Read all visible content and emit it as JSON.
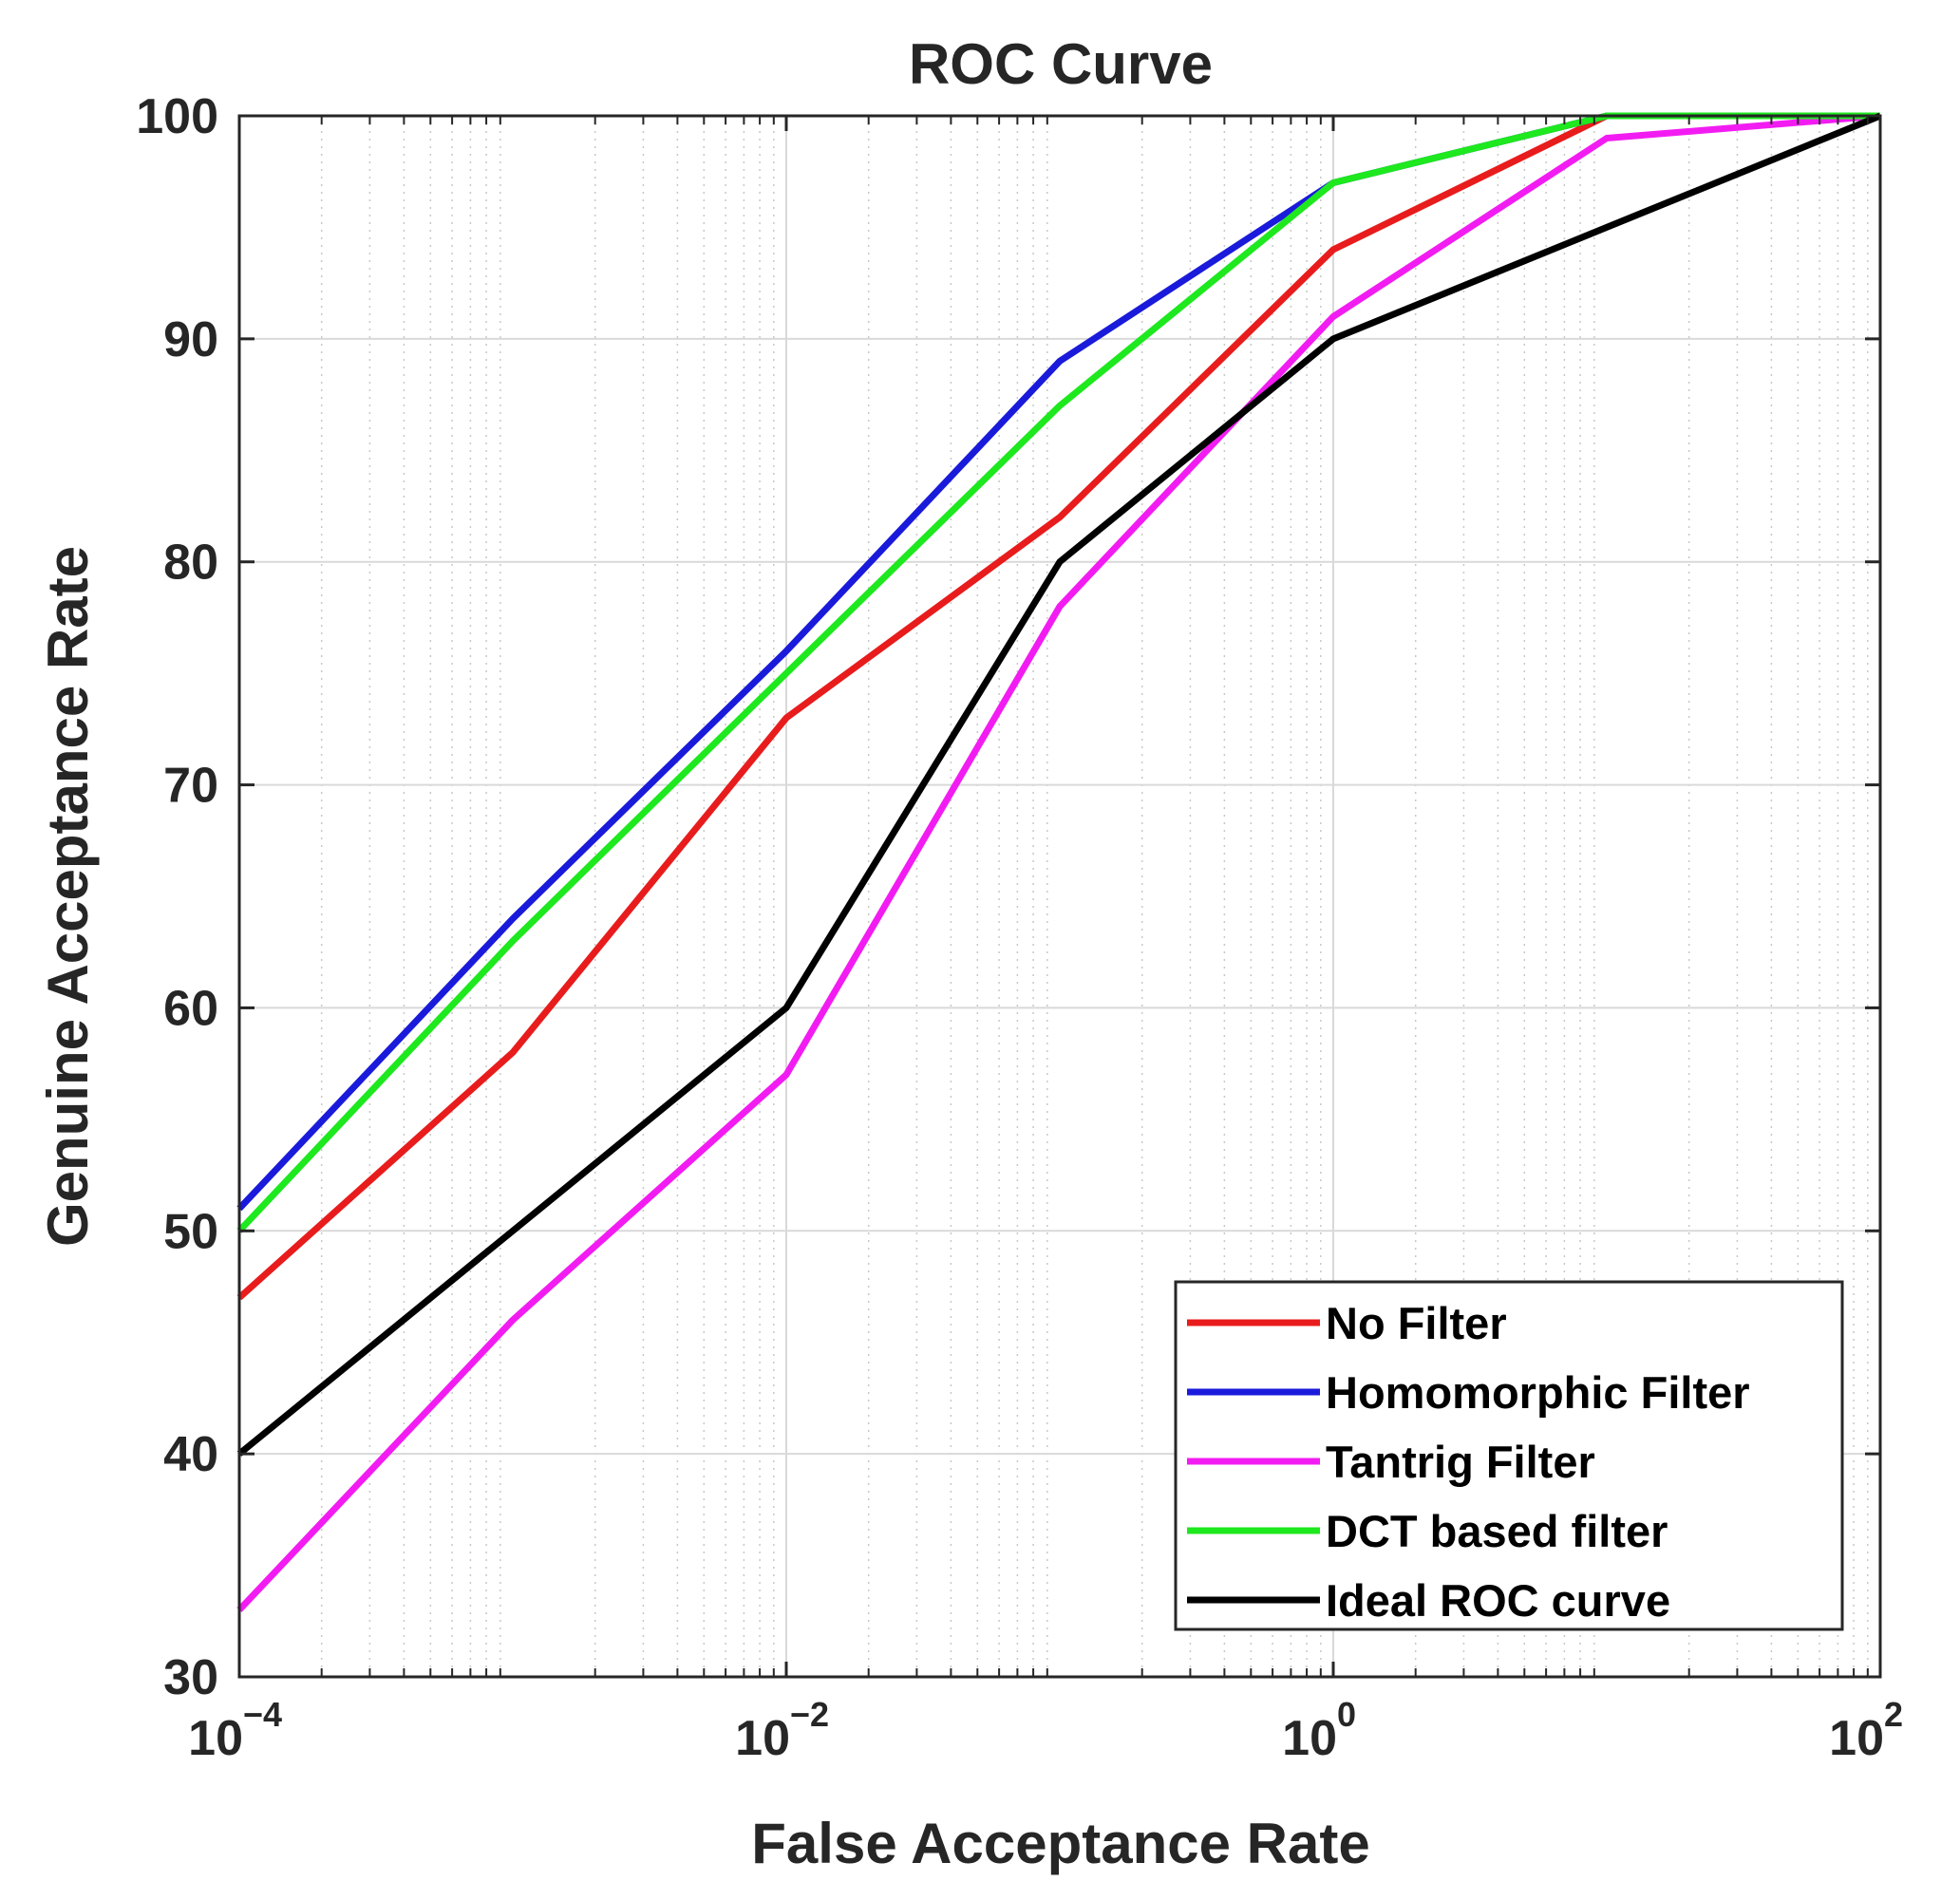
{
  "chart_data": {
    "type": "line",
    "title": "ROC Curve",
    "xlabel": "False Acceptance Rate",
    "ylabel": "Genuine Acceptance Rate",
    "xscale": "log",
    "xlim": [
      0.0001,
      100
    ],
    "ylim": [
      30,
      100
    ],
    "grid": true,
    "minor_grid": true,
    "x_ticks": [
      {
        "value": 0.0001,
        "base": "10",
        "exp": "−4"
      },
      {
        "value": 0.01,
        "base": "10",
        "exp": "−2"
      },
      {
        "value": 1,
        "base": "10",
        "exp": "0"
      },
      {
        "value": 100,
        "base": "10",
        "exp": "2"
      }
    ],
    "y_ticks": [
      {
        "value": 30,
        "label": "30"
      },
      {
        "value": 40,
        "label": "40"
      },
      {
        "value": 50,
        "label": "50"
      },
      {
        "value": 60,
        "label": "60"
      },
      {
        "value": 70,
        "label": "70"
      },
      {
        "value": 80,
        "label": "80"
      },
      {
        "value": 90,
        "label": "90"
      },
      {
        "value": 100,
        "label": "100"
      }
    ],
    "x": [
      0.0001,
      0.001,
      0.01,
      0.1,
      1,
      10,
      100
    ],
    "legend_position": "bottom-right",
    "series": [
      {
        "name": "No Filter",
        "color": "#e81c1c",
        "values": [
          47,
          58,
          73,
          82,
          94,
          100,
          100
        ]
      },
      {
        "name": "Homomorphic Filter",
        "color": "#1a1adb",
        "values": [
          51,
          64,
          76,
          89,
          97,
          100,
          100
        ]
      },
      {
        "name": "Tantrig Filter",
        "color": "#f21cf2",
        "values": [
          33,
          46,
          57,
          78,
          91,
          99,
          100
        ]
      },
      {
        "name": "DCT based filter",
        "color": "#1ee81e",
        "values": [
          50,
          63,
          75,
          87,
          97,
          100,
          100
        ]
      },
      {
        "name": "Ideal ROC curve",
        "color": "#000000",
        "values": [
          40,
          50,
          60,
          80,
          90,
          95,
          100
        ]
      }
    ]
  }
}
